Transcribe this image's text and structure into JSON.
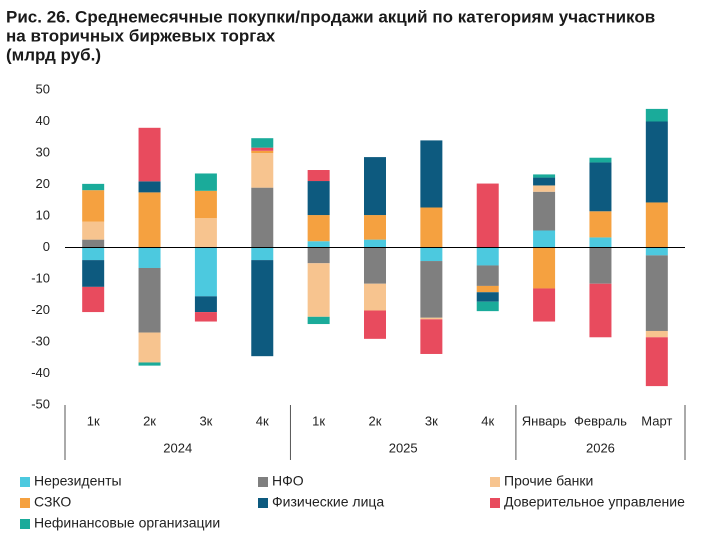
{
  "chart_data": {
    "type": "stacked_bar",
    "title": [
      "Рис. 26. Среднемесячные покупки/продажи акций по категориям участников",
      "на вторичных биржевых торгах",
      "(млрд руб.)"
    ],
    "groups": [
      {
        "name": "2024",
        "categories": [
          "1к",
          "2к",
          "3к",
          "4к"
        ]
      },
      {
        "name": "2025",
        "categories": [
          "1к",
          "2к",
          "3к",
          "4к"
        ]
      },
      {
        "name": "2026",
        "categories": [
          "Январь",
          "Февраль",
          "Март"
        ]
      }
    ],
    "series": [
      {
        "name": "Нерезиденты",
        "color": "#4cc9df",
        "values": [
          -4,
          -6.5,
          -15.5,
          -4,
          2,
          2.5,
          -4.3,
          -5.7,
          5.4,
          3.2,
          -2.5
        ]
      },
      {
        "name": "НФО",
        "color": "#7f7f7f",
        "values": [
          2.5,
          -20.5,
          0,
          19,
          -5,
          -11.5,
          -18,
          -6.5,
          12.3,
          -11.5,
          -24
        ]
      },
      {
        "name": "Прочие банки",
        "color": "#f7c48f",
        "values": [
          5.7,
          -9.5,
          9.3,
          11,
          -17,
          -8.5,
          -0.5,
          0,
          2,
          0,
          -2
        ]
      },
      {
        "name": "СЗКО",
        "color": "#f5a140",
        "values": [
          10,
          17.5,
          8.7,
          0.7,
          8.3,
          7.8,
          12.7,
          -2,
          -13,
          8.3,
          14.3
        ]
      },
      {
        "name": "Физические лица",
        "color": "#0d5a7f",
        "values": [
          -8.5,
          3.5,
          -5,
          -30.5,
          10.8,
          18.4,
          21.3,
          -3,
          2.5,
          15.5,
          25.7
        ]
      },
      {
        "name": "Доверительное управление",
        "color": "#e84b5e",
        "values": [
          -8,
          17,
          -3,
          1,
          3.5,
          -9,
          -11,
          20.3,
          -10.5,
          -17,
          -15.5
        ]
      },
      {
        "name": "Нефинансовые организации",
        "color": "#1aab9a",
        "values": [
          2,
          -1,
          5.5,
          3,
          -2.3,
          0,
          0,
          -3,
          1,
          1.5,
          4
        ]
      }
    ],
    "ylim": [
      -50,
      50
    ],
    "yticks": [
      -50,
      -40,
      -30,
      -20,
      -10,
      0,
      10,
      20,
      30,
      40,
      50
    ],
    "grid": false
  }
}
